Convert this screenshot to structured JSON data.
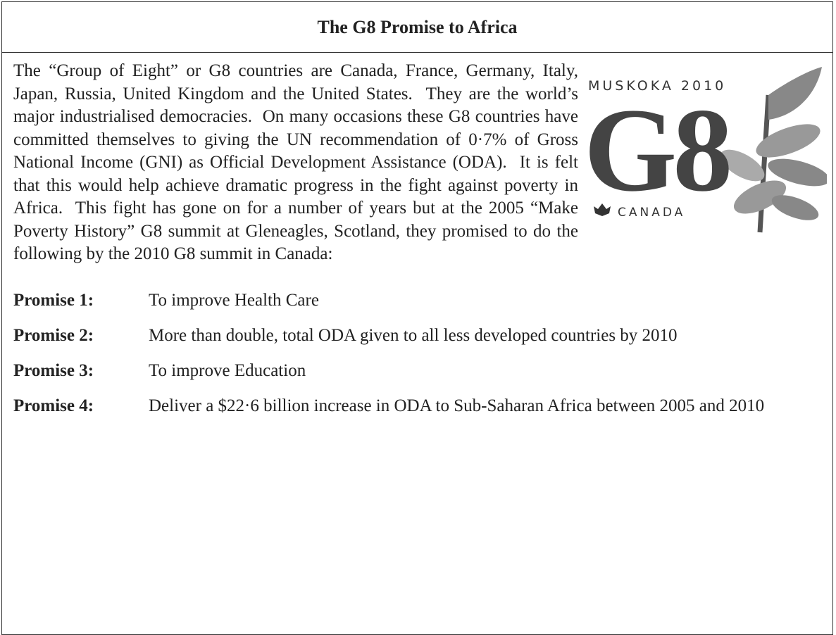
{
  "header": {
    "title": "The G8 Promise to Africa"
  },
  "body": {
    "paragraph": "The “Group of Eight” or G8 countries are Canada, France, Germany, Italy, Japan, Russia, United Kingdom and the United States.  They are the world’s major industrialised democracies.  On many occasions these G8 countries have committed themselves to giving the UN recommendation of 0·7% of Gross National Income (GNI) as Official Development Assistance (ODA).  It is felt that this would help achieve dramatic progress in the fight against poverty in Africa.  This fight has gone on for a number of years but at the 2005 “Make Poverty History” G8 summit at Gleneagles, Scotland, they promised to do the following by the 2010 G8 summit in Canada:"
  },
  "logo": {
    "top": "MUSKOKA 2010",
    "main": "G8",
    "bottom": "CANADA"
  },
  "promises": [
    {
      "label": "Promise 1:",
      "text": "To improve Health Care"
    },
    {
      "label": "Promise 2:",
      "text": "More than double, total ODA given to all less developed countries by 2010"
    },
    {
      "label": "Promise 3:",
      "text": "To improve Education"
    },
    {
      "label": "Promise 4:",
      "text": "Deliver a $22·6 billion increase in ODA to Sub-Saharan Africa between 2005 and 2010"
    }
  ]
}
